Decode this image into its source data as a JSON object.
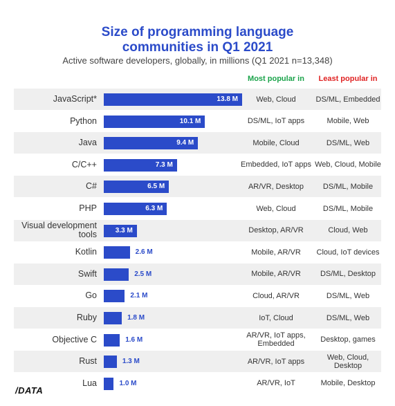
{
  "header": {
    "title_line1": "Size of programming language",
    "title_line2": "communities in Q1 2021",
    "subtitle": "Active software developers, globally, in millions (Q1 2021 n=13,348)",
    "most_popular_label": "Most popular in",
    "least_popular_label": "Least popular in"
  },
  "logo": "/DATA",
  "colors": {
    "bar": "#2b4bc9",
    "most_popular": "#1aa34a",
    "least_popular": "#e02424"
  },
  "chart_data": {
    "type": "bar",
    "orientation": "horizontal",
    "title": "Size of programming language communities in Q1 2021",
    "subtitle": "Active software developers, globally, in millions (Q1 2021 n=13,348)",
    "unit": "M",
    "categories": [
      "JavaScript*",
      "Python",
      "Java",
      "C/C++",
      "C#",
      "PHP",
      "Visual development tools",
      "Kotlin",
      "Swift",
      "Go",
      "Ruby",
      "Objective C",
      "Rust",
      "Lua"
    ],
    "values": [
      13.8,
      10.1,
      9.4,
      7.3,
      6.5,
      6.3,
      3.3,
      2.6,
      2.5,
      2.1,
      1.8,
      1.6,
      1.3,
      1.0
    ],
    "value_labels": [
      "13.8 M",
      "10.1 M",
      "9.4 M",
      "7.3 M",
      "6.5 M",
      "6.3 M",
      "3.3 M",
      "2.6 M",
      "2.5 M",
      "2.1 M",
      "1.8 M",
      "1.6 M",
      "1.3 M",
      "1.0 M"
    ],
    "most_popular_in": [
      "Web, Cloud",
      "DS/ML, IoT apps",
      "Mobile, Cloud",
      "Embedded, IoT apps",
      "AR/VR, Desktop",
      "Web, Cloud",
      "Desktop, AR/VR",
      "Mobile, AR/VR",
      "Mobile, AR/VR",
      "Cloud, AR/VR",
      "IoT, Cloud",
      "AR/VR, IoT apps, Embedded",
      "AR/VR, IoT apps",
      "AR/VR, IoT"
    ],
    "least_popular_in": [
      "DS/ML, Embedded",
      "Mobile, Web",
      "DS/ML, Web",
      "Web, Cloud, Mobile",
      "DS/ML, Mobile",
      "DS/ML, Mobile",
      "Cloud, Web",
      "Cloud, IoT devices",
      "DS/ML, Desktop",
      "DS/ML, Web",
      "DS/ML, Web",
      "Desktop, games",
      "Web, Cloud, Desktop",
      "Mobile, Desktop"
    ],
    "xlim": [
      0,
      13.8
    ],
    "grid": false,
    "legend": "none"
  }
}
